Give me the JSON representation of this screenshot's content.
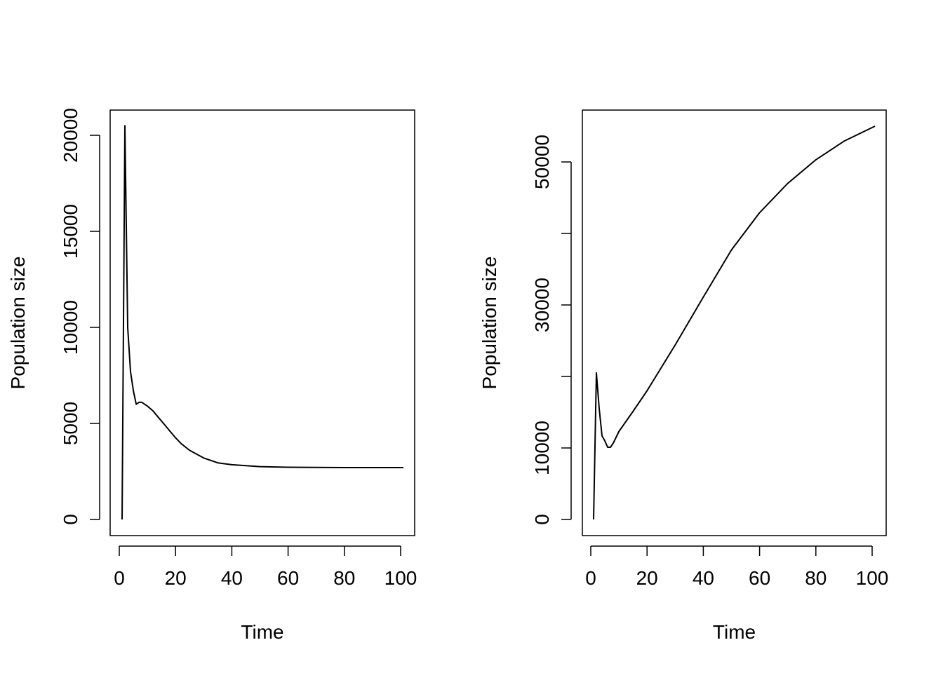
{
  "chart_data": [
    {
      "type": "line",
      "title": "",
      "xlabel": "Time",
      "ylabel": "Population size",
      "xlim": [
        1,
        101
      ],
      "ylim": [
        0,
        20500
      ],
      "xticks": [
        0,
        20,
        40,
        60,
        80,
        100
      ],
      "yticks": [
        0,
        5000,
        10000,
        15000,
        20000
      ],
      "ytick_labels": [
        "0",
        "5000",
        "10000",
        "15000",
        "20000"
      ],
      "grid": false,
      "line_color": "#000000",
      "x": [
        1,
        2,
        3,
        4,
        5,
        6,
        7,
        8,
        9,
        10,
        12,
        14,
        16,
        18,
        20,
        22,
        25,
        30,
        35,
        40,
        50,
        60,
        80,
        101
      ],
      "values": [
        0,
        20500,
        10000,
        7700,
        6700,
        6000,
        6100,
        6100,
        6000,
        5900,
        5650,
        5300,
        4950,
        4600,
        4250,
        3950,
        3600,
        3200,
        2950,
        2850,
        2750,
        2720,
        2700,
        2700
      ]
    },
    {
      "type": "line",
      "title": "",
      "xlabel": "Time",
      "ylabel": "Population size",
      "xlim": [
        1,
        101
      ],
      "ylim": [
        0,
        55000
      ],
      "xticks": [
        0,
        20,
        40,
        60,
        80,
        100
      ],
      "yticks": [
        0,
        10000,
        20000,
        30000,
        40000,
        50000
      ],
      "ytick_labels": [
        "0",
        "10000",
        "",
        "30000",
        "",
        "50000"
      ],
      "grid": false,
      "line_color": "#000000",
      "x": [
        1,
        2,
        3,
        4,
        5,
        6,
        7,
        8,
        10,
        15,
        20,
        30,
        40,
        50,
        60,
        70,
        80,
        90,
        101
      ],
      "values": [
        0,
        20500,
        15500,
        11700,
        11000,
        10100,
        10100,
        10700,
        12300,
        15100,
        18000,
        24400,
        31100,
        37700,
        42900,
        47000,
        50300,
        52900,
        55000
      ]
    }
  ]
}
